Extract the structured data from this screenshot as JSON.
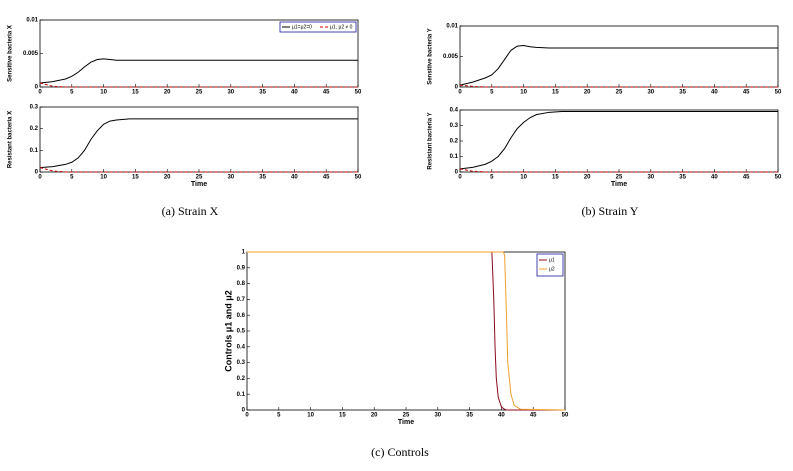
{
  "chart_data": [
    {
      "type": "line",
      "ylabel": "Sensitive bacteria X",
      "legend": "upper right",
      "x": [
        0,
        2,
        4,
        5,
        6,
        7,
        8,
        9,
        10,
        11,
        12,
        14,
        16,
        20,
        30,
        40,
        50
      ],
      "series": [
        {
          "name": "μ1=μ2=0",
          "color": "#000000",
          "linestyle": "solid",
          "values": [
            0.0006,
            0.0008,
            0.0012,
            0.0016,
            0.0022,
            0.003,
            0.0037,
            0.0041,
            0.0042,
            0.0041,
            0.004,
            0.004,
            0.004,
            0.004,
            0.004,
            0.004,
            0.004
          ]
        },
        {
          "name": "μ1, μ2 ≠ 0",
          "color": "#cc0000",
          "linestyle": "dashed",
          "values": [
            0.0006,
            0.0001,
            0,
            0,
            0,
            0,
            0,
            0,
            0,
            0,
            0,
            0,
            0,
            0,
            0,
            0,
            0
          ]
        }
      ],
      "xlim": [
        0,
        50
      ],
      "xticks": [
        0,
        5,
        10,
        15,
        20,
        25,
        30,
        35,
        40,
        45,
        50
      ],
      "ylim": [
        0,
        0.01
      ],
      "yticks": [
        0,
        0.005,
        0.01
      ]
    },
    {
      "type": "line",
      "ylabel": "Resistant bacteria X",
      "xlabel": "Time",
      "x": [
        0,
        2,
        4,
        5,
        6,
        7,
        8,
        9,
        10,
        11,
        12,
        14,
        16,
        20,
        30,
        40,
        50
      ],
      "series": [
        {
          "color": "#000000",
          "linestyle": "solid",
          "values": [
            0.02,
            0.025,
            0.035,
            0.045,
            0.065,
            0.1,
            0.15,
            0.19,
            0.22,
            0.235,
            0.24,
            0.245,
            0.245,
            0.245,
            0.245,
            0.245,
            0.245
          ]
        },
        {
          "color": "#cc0000",
          "linestyle": "dashed",
          "values": [
            0.02,
            0.005,
            0,
            0,
            0,
            0,
            0,
            0,
            0,
            0,
            0,
            0,
            0,
            0,
            0,
            0,
            0
          ]
        }
      ],
      "xlim": [
        0,
        50
      ],
      "xticks": [
        0,
        5,
        10,
        15,
        20,
        25,
        30,
        35,
        40,
        45,
        50
      ],
      "ylim": [
        0,
        0.3
      ],
      "yticks": [
        0,
        0.1,
        0.2,
        0.3
      ]
    },
    {
      "type": "line",
      "ylabel": "Sensitive bacteria Y",
      "x": [
        0,
        2,
        4,
        5,
        6,
        7,
        8,
        9,
        10,
        11,
        12,
        14,
        16,
        20,
        30,
        40,
        50
      ],
      "series": [
        {
          "color": "#000000",
          "linestyle": "solid",
          "values": [
            0.0003,
            0.0008,
            0.0015,
            0.002,
            0.003,
            0.0045,
            0.006,
            0.0067,
            0.0068,
            0.0066,
            0.0065,
            0.0064,
            0.0064,
            0.0064,
            0.0064,
            0.0064,
            0.0064
          ]
        },
        {
          "color": "#cc0000",
          "linestyle": "dashed",
          "values": [
            0.0003,
            0.0001,
            0,
            0,
            0,
            0,
            0,
            0,
            0,
            0,
            0,
            0,
            0,
            0,
            0,
            0,
            0
          ]
        }
      ],
      "xlim": [
        0,
        50
      ],
      "xticks": [
        0,
        5,
        10,
        15,
        20,
        25,
        30,
        35,
        40,
        45,
        50
      ],
      "ylim": [
        0,
        0.01
      ],
      "yticks": [
        0,
        0.005,
        0.01
      ]
    },
    {
      "type": "line",
      "ylabel": "Resistant bacteria Y",
      "xlabel": "Time",
      "x": [
        0,
        2,
        4,
        5,
        6,
        7,
        8,
        9,
        10,
        11,
        12,
        14,
        16,
        20,
        30,
        40,
        50
      ],
      "series": [
        {
          "color": "#000000",
          "linestyle": "solid",
          "values": [
            0.02,
            0.03,
            0.05,
            0.07,
            0.1,
            0.15,
            0.22,
            0.28,
            0.32,
            0.35,
            0.37,
            0.385,
            0.39,
            0.39,
            0.39,
            0.39,
            0.39
          ]
        },
        {
          "color": "#cc0000",
          "linestyle": "dashed",
          "values": [
            0.02,
            0.005,
            0,
            0,
            0,
            0,
            0,
            0,
            0,
            0,
            0,
            0,
            0,
            0,
            0,
            0,
            0
          ]
        }
      ],
      "xlim": [
        0,
        50
      ],
      "xticks": [
        0,
        5,
        10,
        15,
        20,
        25,
        30,
        35,
        40,
        45,
        50
      ],
      "ylim": [
        0,
        0.4
      ],
      "yticks": [
        0,
        0.1,
        0.2,
        0.3,
        0.4
      ]
    },
    {
      "type": "line",
      "ylabel": "Controls μ1 and μ2",
      "xlabel": "Time",
      "legend": "upper right",
      "x": [
        0,
        38.5,
        38.8,
        39,
        39.2,
        39.5,
        40,
        40.3,
        40.5,
        40.8,
        41,
        41.5,
        42,
        43,
        50
      ],
      "series": [
        {
          "name": "μ1",
          "color": "#8b0a1e",
          "linestyle": "solid",
          "values": [
            1,
            1,
            0.7,
            0.4,
            0.2,
            0.08,
            0.02,
            0.01,
            0.005,
            0,
            0,
            0,
            0,
            0,
            0
          ]
        },
        {
          "name": "μ2",
          "color": "#f0a030",
          "linestyle": "solid",
          "values": [
            1,
            1,
            1,
            1,
            1,
            1,
            1,
            1,
            0.98,
            0.6,
            0.3,
            0.1,
            0.03,
            0.005,
            0
          ]
        }
      ],
      "xlim": [
        0,
        50
      ],
      "xticks": [
        0,
        5,
        10,
        15,
        20,
        25,
        30,
        35,
        40,
        45,
        50
      ],
      "ylim": [
        0,
        1
      ],
      "yticks": [
        0,
        0.1,
        0.2,
        0.3,
        0.4,
        0.5,
        0.6,
        0.7,
        0.8,
        0.9,
        1
      ]
    }
  ],
  "captions": [
    "(a) Strain X",
    "(b) Strain Y",
    "(c) Controls"
  ]
}
